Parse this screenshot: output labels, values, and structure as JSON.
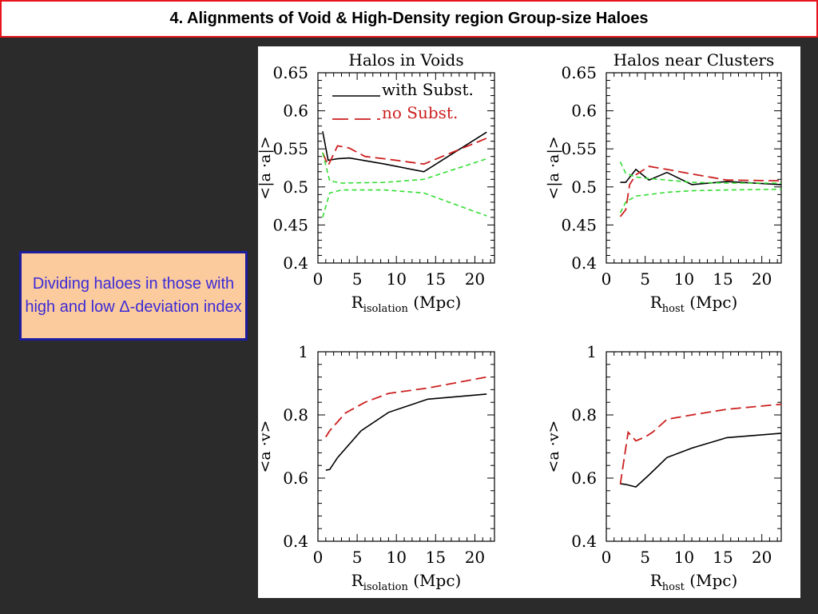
{
  "title": "4.    Alignments of Void & High-Density region Group-size Haloes",
  "note": "Dividing haloes in those with high and low Δ-deviation index",
  "colors": {
    "accent_border": "#e8141c",
    "note_bg": "#fccb9d",
    "note_border": "#1c1c9c",
    "note_text": "#3b2bd6",
    "with_subst": "#000000",
    "no_subst": "#cc1f1f",
    "scatter_bounds": "#33dd33"
  },
  "chart_data": [
    {
      "id": "voids-aa",
      "type": "line",
      "title": "Halos in Voids",
      "xlabel_main": "R",
      "xlabel_sub": "isolation",
      "xlabel_unit": "(Mpc)",
      "ylabel": "<|a ·a|>",
      "xlim": [
        0,
        22.5
      ],
      "ylim": [
        0.4,
        0.65
      ],
      "xticks": [
        0,
        5,
        10,
        15,
        20
      ],
      "yticks": [
        0.4,
        0.45,
        0.5,
        0.55,
        0.6,
        0.65
      ],
      "ytick_labels": [
        "0.4",
        "0.45",
        "0.5",
        "0.55",
        "0.6",
        "0.65"
      ],
      "legend": [
        {
          "label": "with Subst.",
          "style": "solid",
          "color": "#000000"
        },
        {
          "label": "no Subst.",
          "style": "dashed",
          "color": "#cc1f1f"
        }
      ],
      "series": [
        {
          "name": "with Subst.",
          "style": "solid",
          "color": "#000000",
          "x": [
            0.6,
            1.3,
            2.5,
            4.0,
            8.5,
            13.5,
            21.5
          ],
          "y": [
            0.573,
            0.535,
            0.537,
            0.538,
            0.53,
            0.52,
            0.572
          ]
        },
        {
          "name": "no Subst.",
          "style": "dashed",
          "color": "#cc1f1f",
          "x": [
            0.6,
            1.3,
            2.5,
            4.0,
            6.0,
            8.5,
            13.5,
            21.5
          ],
          "y": [
            0.545,
            0.528,
            0.554,
            0.551,
            0.54,
            0.537,
            0.53,
            0.564
          ]
        },
        {
          "style": "dashed-thin",
          "color": "#33dd33",
          "x": [
            0.6,
            1.5,
            3.0,
            8.5,
            13.5,
            21.5
          ],
          "y": [
            0.545,
            0.508,
            0.505,
            0.506,
            0.51,
            0.537
          ]
        },
        {
          "style": "dashed-thin",
          "color": "#33dd33",
          "x": [
            0.6,
            1.5,
            3.0,
            8.5,
            13.5,
            21.5
          ],
          "y": [
            0.46,
            0.492,
            0.496,
            0.496,
            0.492,
            0.462
          ]
        }
      ]
    },
    {
      "id": "clusters-aa",
      "type": "line",
      "title": "Halos near Clusters",
      "xlabel_main": "R",
      "xlabel_sub": "host",
      "xlabel_unit": "(Mpc)",
      "ylabel": "<|a ·a|>",
      "xlim": [
        0,
        22.5
      ],
      "ylim": [
        0.4,
        0.65
      ],
      "xticks": [
        0,
        5,
        10,
        15,
        20
      ],
      "yticks": [
        0.4,
        0.45,
        0.5,
        0.55,
        0.6,
        0.65
      ],
      "ytick_labels": [
        "0.4",
        "0.45",
        "0.5",
        "0.55",
        "0.6",
        "0.65"
      ],
      "series": [
        {
          "name": "with Subst.",
          "style": "solid",
          "color": "#000000",
          "x": [
            1.8,
            2.5,
            3.8,
            5.5,
            7.8,
            11.0,
            15.5,
            22.5
          ],
          "y": [
            0.506,
            0.506,
            0.523,
            0.509,
            0.519,
            0.503,
            0.507,
            0.503
          ]
        },
        {
          "name": "no Subst.",
          "style": "dashed",
          "color": "#cc1f1f",
          "x": [
            1.8,
            2.5,
            3.0,
            3.8,
            5.5,
            7.8,
            11.0,
            15.5,
            22.5
          ],
          "y": [
            0.461,
            0.47,
            0.503,
            0.516,
            0.527,
            0.523,
            0.517,
            0.509,
            0.508
          ]
        },
        {
          "style": "dashed-thin",
          "color": "#33dd33",
          "x": [
            1.8,
            2.5,
            3.8,
            5.5,
            7.8,
            11.0,
            15.5,
            22.5
          ],
          "y": [
            0.533,
            0.518,
            0.513,
            0.511,
            0.509,
            0.506,
            0.505,
            0.505
          ]
        },
        {
          "style": "dashed-thin",
          "color": "#33dd33",
          "x": [
            1.8,
            2.5,
            3.8,
            5.5,
            7.8,
            11.0,
            15.5,
            22.5
          ],
          "y": [
            0.466,
            0.48,
            0.488,
            0.49,
            0.493,
            0.495,
            0.496,
            0.497
          ]
        }
      ]
    },
    {
      "id": "voids-av",
      "type": "line",
      "xlabel_main": "R",
      "xlabel_sub": "isolation",
      "xlabel_unit": "(Mpc)",
      "ylabel": "<a ·v>",
      "xlim": [
        0,
        22.5
      ],
      "ylim": [
        0.4,
        1.0
      ],
      "xticks": [
        0,
        5,
        10,
        15,
        20
      ],
      "yticks": [
        0.4,
        0.6,
        0.8,
        1.0
      ],
      "ytick_labels": [
        "0.4",
        "0.6",
        "0.8",
        "1"
      ],
      "series": [
        {
          "name": "with Subst.",
          "style": "solid",
          "color": "#000000",
          "x": [
            1.0,
            1.5,
            2.5,
            5.5,
            9.0,
            14.0,
            21.5
          ],
          "y": [
            0.625,
            0.627,
            0.665,
            0.75,
            0.808,
            0.85,
            0.866
          ]
        },
        {
          "name": "no Subst.",
          "style": "dashed",
          "color": "#cc1f1f",
          "x": [
            1.0,
            1.5,
            3.5,
            6.0,
            9.0,
            14.0,
            21.5
          ],
          "y": [
            0.73,
            0.75,
            0.806,
            0.84,
            0.868,
            0.885,
            0.92
          ]
        }
      ]
    },
    {
      "id": "clusters-av",
      "type": "line",
      "xlabel_main": "R",
      "xlabel_sub": "host",
      "xlabel_unit": "(Mpc)",
      "ylabel": "<a ·v>",
      "xlim": [
        0,
        22.5
      ],
      "ylim": [
        0.4,
        1.0
      ],
      "xticks": [
        0,
        5,
        10,
        15,
        20
      ],
      "yticks": [
        0.4,
        0.6,
        0.8,
        1.0
      ],
      "ytick_labels": [
        "0.4",
        "0.6",
        "0.8",
        "1"
      ],
      "series": [
        {
          "name": "with Subst.",
          "style": "solid",
          "color": "#000000",
          "x": [
            1.8,
            2.5,
            3.8,
            5.5,
            7.8,
            11.0,
            15.5,
            22.5
          ],
          "y": [
            0.582,
            0.58,
            0.572,
            0.61,
            0.665,
            0.695,
            0.728,
            0.742
          ]
        },
        {
          "name": "no Subst.",
          "style": "dashed",
          "color": "#cc1f1f",
          "x": [
            1.8,
            2.8,
            3.8,
            5.0,
            6.0,
            7.8,
            11.0,
            15.5,
            22.5
          ],
          "y": [
            0.58,
            0.745,
            0.718,
            0.73,
            0.746,
            0.786,
            0.8,
            0.818,
            0.834
          ]
        }
      ]
    }
  ]
}
